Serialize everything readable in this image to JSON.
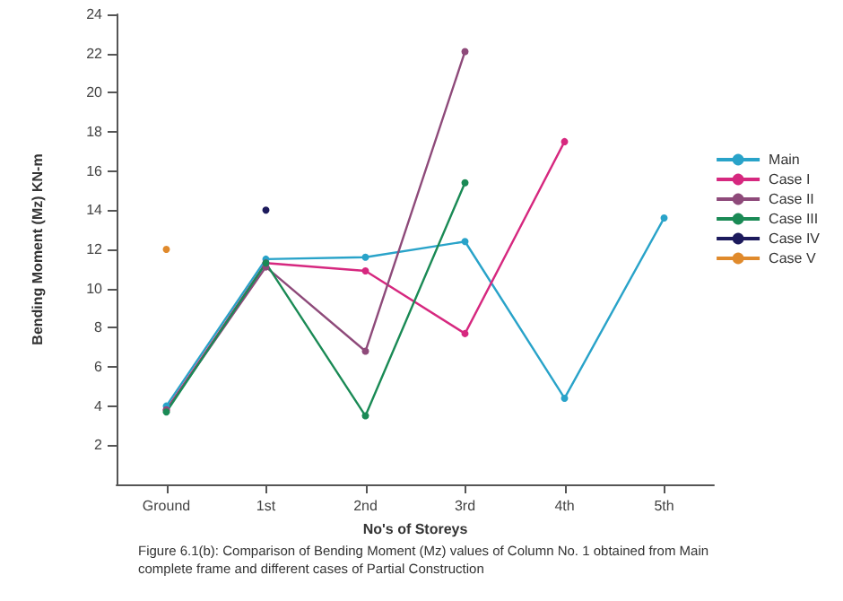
{
  "chart_data": {
    "type": "line",
    "xlabel": "No's of Storeys",
    "ylabel": "Bending Moment (Mz) KN-m",
    "categories": [
      "Ground",
      "1st",
      "2nd",
      "3rd",
      "4th",
      "5th"
    ],
    "series": [
      {
        "name": "Main",
        "color": "#29a3c9",
        "values": [
          4.0,
          11.5,
          11.6,
          12.4,
          4.4,
          13.6
        ]
      },
      {
        "name": "Case I",
        "color": "#d6287f",
        "values": [
          3.8,
          11.3,
          10.9,
          7.7,
          17.5,
          null
        ]
      },
      {
        "name": "Case II",
        "color": "#8e4a7a",
        "values": [
          3.8,
          11.1,
          6.8,
          22.1,
          null,
          null
        ]
      },
      {
        "name": "Case III",
        "color": "#1a8a55",
        "values": [
          3.7,
          11.3,
          3.5,
          15.4,
          null,
          null
        ]
      },
      {
        "name": "Case IV",
        "color": "#1c1a5c",
        "values": [
          null,
          14.0,
          null,
          null,
          null,
          null
        ]
      },
      {
        "name": "Case V",
        "color": "#e08a2c",
        "values": [
          12.0,
          null,
          null,
          null,
          null,
          null
        ]
      }
    ],
    "ylim": [
      0,
      24
    ],
    "yticks": [
      2,
      4,
      6,
      8,
      10,
      12,
      14,
      16,
      18,
      20,
      22,
      24
    ],
    "grid": false,
    "legend": "right",
    "marker": "circle",
    "line_style": "solid",
    "annotations": [
      "Figure 6.1(b): Comparison of Bending Moment (Mz) values of Column No. 1 obtained from Main complete frame and different cases of Partial Construction"
    ]
  }
}
